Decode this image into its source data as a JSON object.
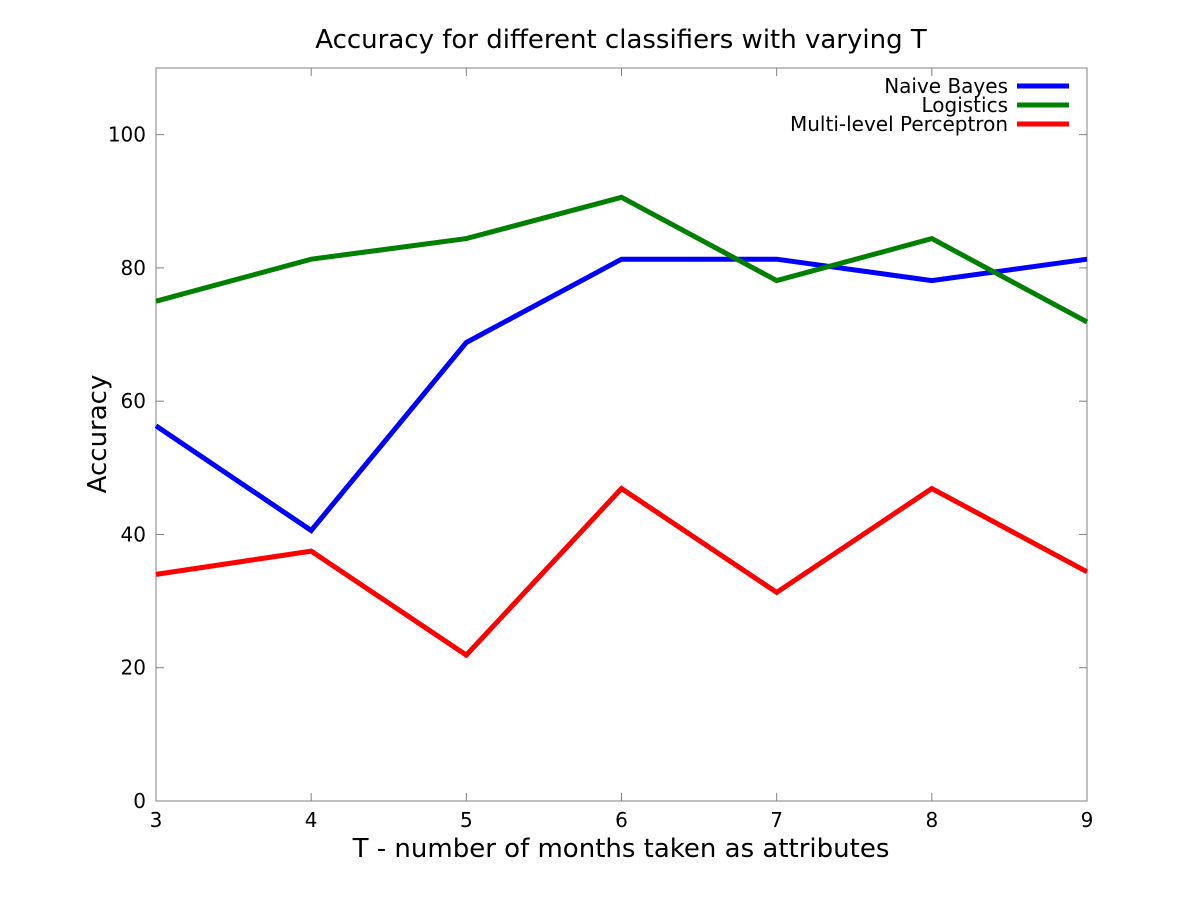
{
  "chart_data": {
    "type": "line",
    "title": "Accuracy for different classifiers with varying T",
    "xlabel": "T - number of months taken as attributes",
    "ylabel": "Accuracy",
    "x": [
      3,
      4,
      5,
      6,
      7,
      8,
      9
    ],
    "xlim": [
      3,
      9
    ],
    "ylim": [
      0,
      110
    ],
    "xticks": [
      3,
      4,
      5,
      6,
      7,
      8,
      9
    ],
    "yticks": [
      0,
      20,
      40,
      60,
      80,
      100
    ],
    "grid": false,
    "legend_position": "top-right",
    "series": [
      {
        "name": "Naive Bayes",
        "color": "#0000ff",
        "values": [
          56.3,
          40.6,
          68.8,
          81.3,
          81.3,
          78.1,
          81.3
        ]
      },
      {
        "name": "Logistics",
        "color": "#008000",
        "values": [
          75.0,
          81.3,
          84.4,
          90.6,
          78.1,
          84.4,
          71.9
        ]
      },
      {
        "name": "Multi-level Perceptron",
        "color": "#ff0000",
        "values": [
          34.0,
          37.5,
          21.9,
          46.9,
          31.3,
          46.9,
          34.4
        ]
      }
    ]
  }
}
